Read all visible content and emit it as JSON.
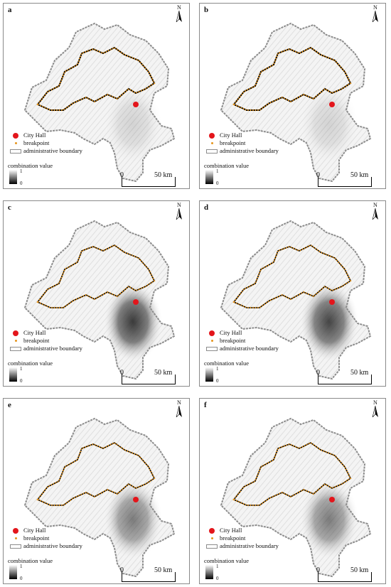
{
  "panels": [
    {
      "label": "a",
      "intensity": 0.15,
      "city_hall_dot_color": "red"
    },
    {
      "label": "b",
      "intensity": 0.15,
      "city_hall_dot_color": "red"
    },
    {
      "label": "c",
      "intensity": 0.85,
      "city_hall_dot_color": "red"
    },
    {
      "label": "d",
      "intensity": 0.8,
      "city_hall_dot_color": "red"
    },
    {
      "label": "e",
      "intensity": 0.55,
      "city_hall_dot_color": "red"
    },
    {
      "label": "f",
      "intensity": 0.55,
      "city_hall_dot_color": "red"
    }
  ],
  "legend": {
    "city_hall": "City Hall",
    "breakpoint": "breakpoint",
    "admin_boundary": "administrative boundary",
    "combination_value": "combination value",
    "max": "1",
    "min": "0"
  },
  "north_arrow": "N",
  "scale_bar": {
    "start": "0",
    "end": "50 km"
  },
  "colors": {
    "city_hall": "#e3151b",
    "breakpoint": "#e6951d",
    "admin_boundary": "#8c8c8c",
    "contour": "#000000"
  }
}
